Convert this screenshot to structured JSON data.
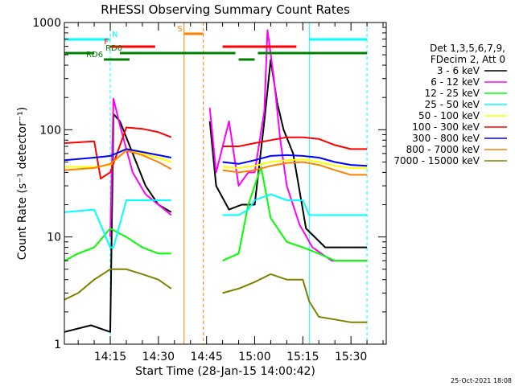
{
  "chart_data": {
    "type": "line",
    "title": "RHESSI Observing Summary Count Rates",
    "xlabel": "Start Time (28-Jan-15 14:00:42)",
    "ylabel": "Count Rate (s⁻¹ detector⁻¹)",
    "y_scale": "log",
    "ylim": [
      1,
      1000
    ],
    "xlim": [
      "14:00:42",
      "15:41:00"
    ],
    "x_ticks": [
      "14:15",
      "14:30",
      "14:45",
      "15:00",
      "15:15",
      "15:30"
    ],
    "y_ticks": [
      {
        "label": "1",
        "value": 1
      },
      {
        "label": "10",
        "value": 10
      },
      {
        "label": "100",
        "value": 100
      },
      {
        "label": "1000",
        "value": 1000
      }
    ],
    "header_lines": [
      "Det 1,3,5,6,7,9,",
      "FDecim 2, Att 0"
    ],
    "series": [
      {
        "name": "3 - 6 keV",
        "color": "#000000",
        "x": [
          "14:00:42",
          "14:09",
          "14:15",
          "14:16",
          "14:18",
          "14:22",
          "14:26",
          "14:30",
          "14:34",
          "14:45",
          "14:46",
          "14:48",
          "14:52",
          "14:56",
          "15:00",
          "15:03",
          "15:05",
          "15:07",
          "15:09",
          "15:12",
          "15:16",
          "15:22",
          "15:30",
          "15:35"
        ],
        "y": [
          1.3,
          1.5,
          1.3,
          140,
          120,
          60,
          30,
          20,
          17,
          null,
          120,
          30,
          18,
          20,
          20,
          120,
          450,
          180,
          100,
          60,
          12,
          8,
          8,
          8
        ]
      },
      {
        "name": "6 - 12 keV",
        "color": "#ff00ff",
        "x": [
          "14:15",
          "14:16",
          "14:18",
          "14:22",
          "14:26",
          "14:30",
          "14:34",
          "14:45",
          "14:46",
          "14:48",
          "14:52",
          "14:55",
          "14:58",
          "15:00",
          "15:03",
          "15:04",
          "15:06",
          "15:08",
          "15:10",
          "15:14",
          "15:18",
          "15:24",
          "15:30",
          "15:35"
        ],
        "y": [
          10,
          195,
          110,
          40,
          25,
          20,
          16,
          null,
          160,
          40,
          120,
          30,
          40,
          40,
          150,
          850,
          300,
          80,
          30,
          13,
          8,
          6,
          6,
          6
        ]
      },
      {
        "name": "12 - 25 keV",
        "color": "#00ff00",
        "x": [
          "14:00:42",
          "14:05",
          "14:10",
          "14:15",
          "14:20",
          "14:25",
          "14:30",
          "14:34",
          "14:45",
          "14:50",
          "14:55",
          "14:58",
          "15:00",
          "15:02",
          "15:05",
          "15:10",
          "15:15",
          "15:20",
          "15:25",
          "15:30",
          "15:35"
        ],
        "y": [
          6,
          7,
          8,
          12,
          10,
          8,
          7,
          7,
          null,
          6,
          7,
          20,
          30,
          45,
          15,
          9,
          8,
          7,
          6,
          6,
          6
        ]
      },
      {
        "name": "25 - 50 keV",
        "color": "#00ffff",
        "x": [
          "14:00:42",
          "14:10",
          "14:15",
          "14:16",
          "14:20",
          "14:25",
          "14:30",
          "14:34",
          "14:45",
          "14:50",
          "14:55",
          "14:58",
          "15:00",
          "15:05",
          "15:10",
          "15:15",
          "15:17",
          "15:20",
          "15:30",
          "15:35"
        ],
        "y": [
          17,
          18,
          8,
          8,
          22,
          22,
          22,
          22,
          null,
          16,
          16,
          18,
          22,
          25,
          22,
          22,
          16,
          16,
          16,
          16
        ]
      },
      {
        "name": "50 - 100 keV",
        "color": "#ffff00",
        "x": [
          "14:00:42",
          "14:10",
          "14:15",
          "14:20",
          "14:25",
          "14:30",
          "14:34",
          "14:45",
          "14:50",
          "14:55",
          "15:00",
          "15:05",
          "15:10",
          "15:15",
          "15:20",
          "15:25",
          "15:30",
          "15:35"
        ],
        "y": [
          45,
          45,
          47,
          65,
          60,
          55,
          50,
          null,
          45,
          44,
          46,
          50,
          52,
          53,
          50,
          46,
          44,
          44
        ]
      },
      {
        "name": "100 - 300 keV",
        "color": "#ff0000",
        "x": [
          "14:00:42",
          "14:10",
          "14:12",
          "14:15",
          "14:20",
          "14:25",
          "14:30",
          "14:34",
          "14:45",
          "14:50",
          "14:55",
          "15:00",
          "15:05",
          "15:10",
          "15:15",
          "15:20",
          "15:25",
          "15:30",
          "15:35"
        ],
        "y": [
          75,
          78,
          35,
          40,
          105,
          102,
          95,
          85,
          null,
          70,
          70,
          75,
          80,
          85,
          85,
          82,
          72,
          66,
          66
        ]
      },
      {
        "name": "300 - 800 keV",
        "color": "#0000ff",
        "x": [
          "14:00:42",
          "14:10",
          "14:15",
          "14:20",
          "14:25",
          "14:30",
          "14:34",
          "14:45",
          "14:50",
          "14:55",
          "15:00",
          "15:05",
          "15:10",
          "15:15",
          "15:20",
          "15:25",
          "15:30",
          "15:35"
        ],
        "y": [
          52,
          55,
          57,
          66,
          62,
          58,
          55,
          null,
          50,
          48,
          52,
          57,
          58,
          57,
          55,
          50,
          47,
          46
        ]
      },
      {
        "name": "800 - 7000 keV",
        "color": "#ff8000",
        "x": [
          "14:00:42",
          "14:10",
          "14:15",
          "14:20",
          "14:25",
          "14:30",
          "14:34",
          "14:45",
          "14:50",
          "14:55",
          "15:00",
          "15:05",
          "15:10",
          "15:15",
          "15:20",
          "15:25",
          "15:30",
          "15:35"
        ],
        "y": [
          42,
          44,
          48,
          64,
          58,
          50,
          43,
          null,
          42,
          40,
          42,
          46,
          49,
          50,
          47,
          42,
          38,
          38
        ]
      },
      {
        "name": "7000 - 15000 keV",
        "color": "#808000",
        "x": [
          "14:00:42",
          "14:05",
          "14:10",
          "14:15",
          "14:20",
          "14:25",
          "14:30",
          "14:34",
          "14:45",
          "14:50",
          "14:55",
          "15:00",
          "15:05",
          "15:10",
          "15:15",
          "15:17",
          "15:20",
          "15:25",
          "15:30",
          "15:35"
        ],
        "y": [
          2.6,
          3,
          4,
          5,
          5,
          4.5,
          4,
          3.3,
          null,
          3,
          3.3,
          3.8,
          4.5,
          4,
          4,
          2.5,
          1.8,
          1.7,
          1.6,
          1.6
        ]
      }
    ],
    "vertical_markers": [
      {
        "time": "14:15",
        "color": "#00ffff",
        "style": "dashed"
      },
      {
        "time": "14:38",
        "color": "#ff8000",
        "style": "solid"
      },
      {
        "time": "14:44",
        "color": "#ff8000",
        "style": "dashed"
      },
      {
        "time": "15:17",
        "color": "#00ffff",
        "style": "solid"
      },
      {
        "time": "15:35",
        "color": "#00ffff",
        "style": "dashed"
      }
    ],
    "flag_bars": [
      {
        "label": "N",
        "color": "#00ffff",
        "level": 1,
        "intervals": [
          [
            "14:00:42",
            "14:15"
          ],
          [
            "15:17",
            "15:35"
          ]
        ]
      },
      {
        "label": "F",
        "color": "#ff0000",
        "level": 2,
        "intervals": [
          [
            "14:15",
            "14:29"
          ],
          [
            "14:50",
            "15:13"
          ]
        ]
      },
      {
        "label": "S",
        "color": "#ff8000",
        "level": 0,
        "intervals": [
          [
            "14:38",
            "14:44"
          ]
        ]
      },
      {
        "label": "RD0",
        "color": "#008000",
        "level": 3,
        "intervals": [
          [
            "14:00:42",
            "14:10"
          ],
          [
            "14:18",
            "14:54"
          ],
          [
            "15:01",
            "15:35"
          ]
        ]
      },
      {
        "label": "RD6",
        "color": "#008000",
        "level": 4,
        "intervals": [
          [
            "14:13",
            "14:21"
          ],
          [
            "14:55",
            "15:00"
          ]
        ]
      }
    ],
    "timestamp": "25-Oct-2021 18:08"
  }
}
